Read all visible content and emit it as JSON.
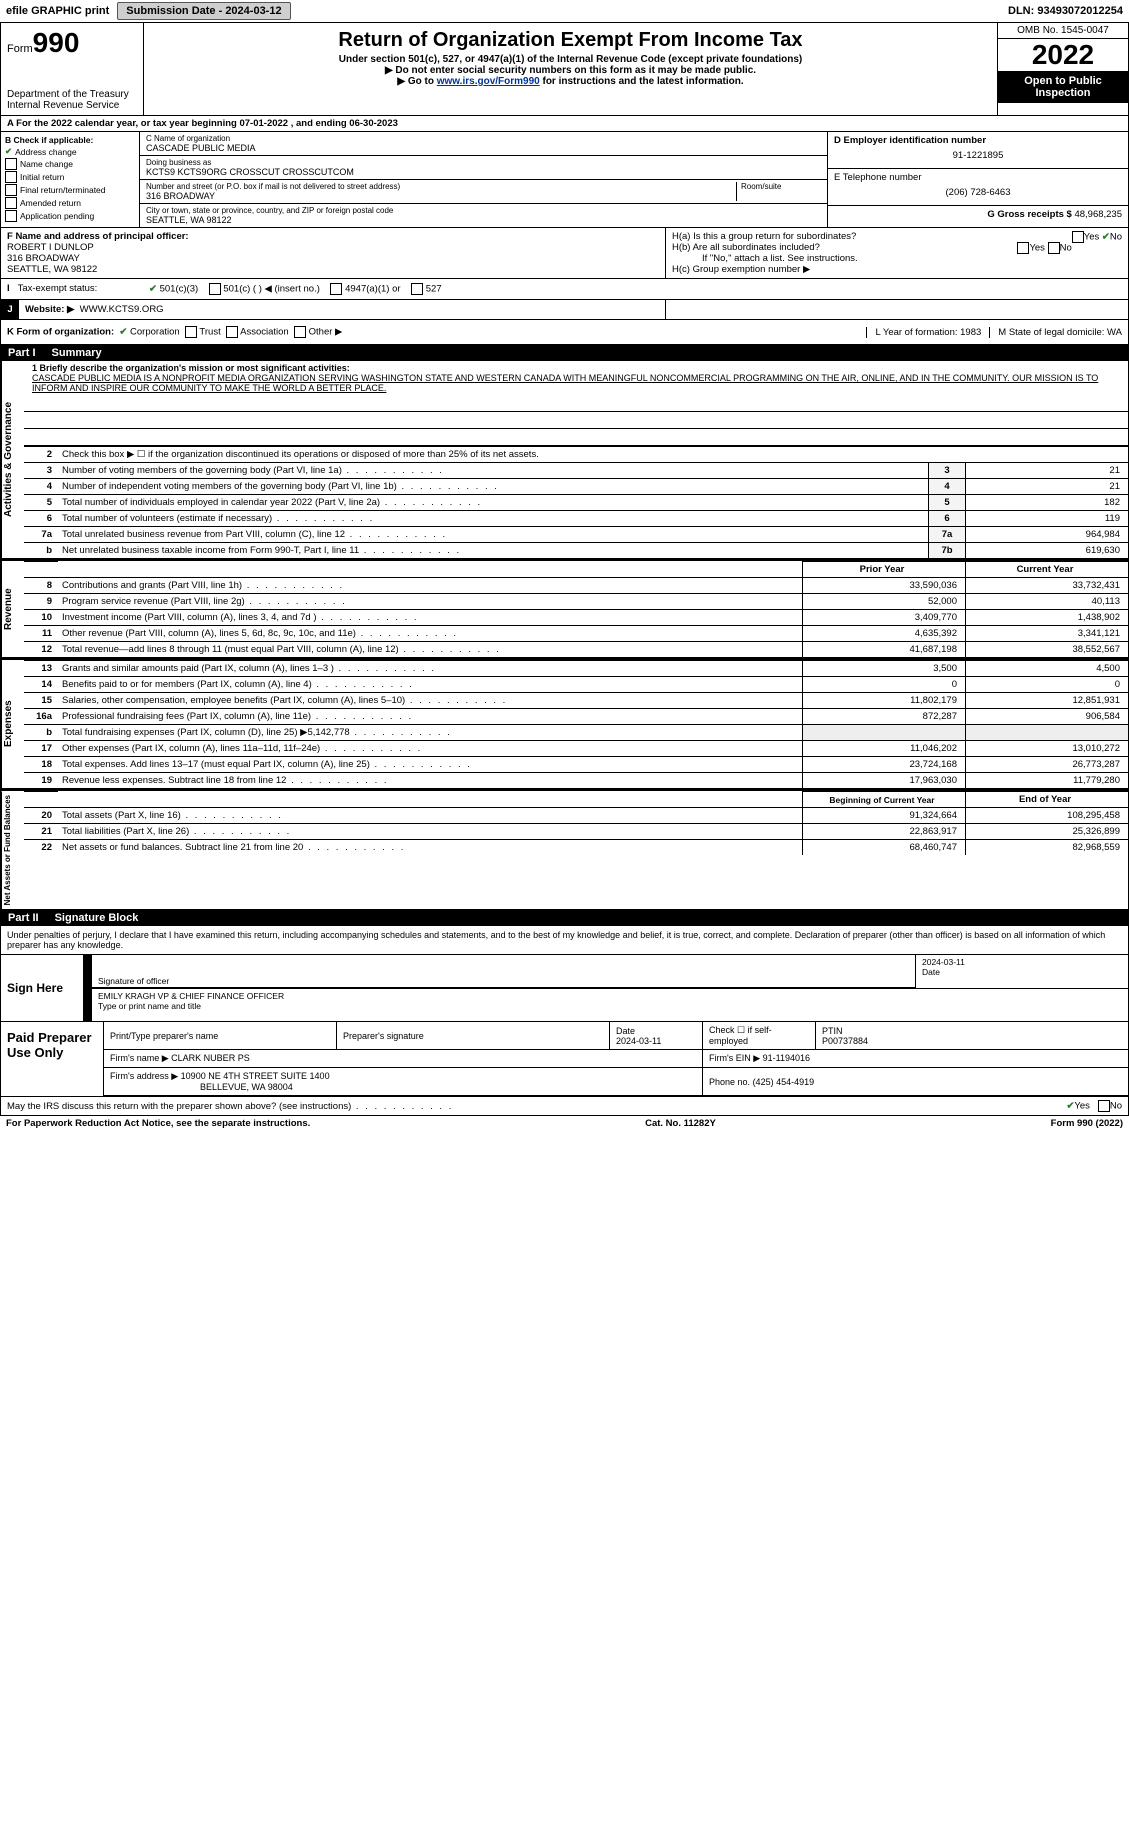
{
  "top": {
    "efile": "efile GRAPHIC print",
    "submission_label": "Submission Date - 2024-03-12",
    "dln": "DLN: 93493072012254"
  },
  "header": {
    "form_label": "Form",
    "form_num": "990",
    "dept": "Department of the Treasury",
    "irs": "Internal Revenue Service",
    "title": "Return of Organization Exempt From Income Tax",
    "subtitle": "Under section 501(c), 527, or 4947(a)(1) of the Internal Revenue Code (except private foundations)",
    "note1": "▶ Do not enter social security numbers on this form as it may be made public.",
    "note2_pre": "▶ Go to ",
    "note2_link": "www.irs.gov/Form990",
    "note2_post": " for instructions and the latest information.",
    "omb": "OMB No. 1545-0047",
    "year": "2022",
    "open": "Open to Public Inspection"
  },
  "periodA": "For the 2022 calendar year, or tax year beginning 07-01-2022     , and ending 06-30-2023",
  "boxB": {
    "label": "B Check if applicable:",
    "items": [
      {
        "checked": true,
        "text": "Address change"
      },
      {
        "checked": false,
        "text": "Name change"
      },
      {
        "checked": false,
        "text": "Initial return"
      },
      {
        "checked": false,
        "text": "Final return/terminated"
      },
      {
        "checked": false,
        "text": "Amended return"
      },
      {
        "checked": false,
        "text": "Application pending"
      }
    ]
  },
  "boxC": {
    "name_label": "C Name of organization",
    "name": "CASCADE PUBLIC MEDIA",
    "dba_label": "Doing business as",
    "dba": "KCTS9 KCTS9ORG CROSSCUT CROSSCUTCOM",
    "addr_label": "Number and street (or P.O. box if mail is not delivered to street address)",
    "room_label": "Room/suite",
    "addr": "316 BROADWAY",
    "city_label": "City or town, state or province, country, and ZIP or foreign postal code",
    "city": "SEATTLE, WA  98122"
  },
  "boxD": {
    "label": "D Employer identification number",
    "val": "91-1221895"
  },
  "boxE": {
    "label": "E Telephone number",
    "val": "(206) 728-6463"
  },
  "boxG": {
    "label": "G Gross receipts $",
    "val": "48,968,235"
  },
  "boxF": {
    "label": "F Name and address of principal officer:",
    "name": "ROBERT I DUNLOP",
    "addr1": "316 BROADWAY",
    "addr2": "SEATTLE, WA  98122"
  },
  "boxH": {
    "ha": "H(a)  Is this a group return for subordinates?",
    "hb": "H(b)  Are all subordinates included?",
    "hb_note": "If \"No,\" attach a list. See instructions.",
    "hc": "H(c)  Group exemption number ▶",
    "yes": "Yes",
    "no": "No"
  },
  "taxI": {
    "label": "Tax-exempt status:",
    "opt1": "501(c)(3)",
    "opt2": "501(c) (   ) ◀ (insert no.)",
    "opt3": "4947(a)(1) or",
    "opt4": "527"
  },
  "webJ": {
    "j": "J",
    "label": "Website: ▶",
    "val": "WWW.KCTS9.ORG"
  },
  "kRow": {
    "label": "K Form of organization:",
    "opts": [
      "Corporation",
      "Trust",
      "Association",
      "Other ▶"
    ],
    "checked_idx": 0,
    "l": "L Year of formation: 1983",
    "m": "M State of legal domicile: WA"
  },
  "part1": {
    "label": "Part I",
    "title": "Summary"
  },
  "mission": {
    "q": "1  Briefly describe the organization's mission or most significant activities:",
    "text": "CASCADE PUBLIC MEDIA IS A NONPROFIT MEDIA ORGANIZATION SERVING WASHINGTON STATE AND WESTERN CANADA WITH MEANINGFUL NONCOMMERCIAL PROGRAMMING ON THE AIR, ONLINE, AND IN THE COMMUNITY. OUR MISSION IS TO INFORM AND INSPIRE OUR COMMUNITY TO MAKE THE WORLD A BETTER PLACE."
  },
  "gov_lines": [
    {
      "n": "2",
      "text": "Check this box ▶ ☐  if the organization discontinued its operations or disposed of more than 25% of its net assets.",
      "num": "",
      "val": ""
    },
    {
      "n": "3",
      "text": "Number of voting members of the governing body (Part VI, line 1a)",
      "num": "3",
      "val": "21"
    },
    {
      "n": "4",
      "text": "Number of independent voting members of the governing body (Part VI, line 1b)",
      "num": "4",
      "val": "21"
    },
    {
      "n": "5",
      "text": "Total number of individuals employed in calendar year 2022 (Part V, line 2a)",
      "num": "5",
      "val": "182"
    },
    {
      "n": "6",
      "text": "Total number of volunteers (estimate if necessary)",
      "num": "6",
      "val": "119"
    },
    {
      "n": "7a",
      "text": "Total unrelated business revenue from Part VIII, column (C), line 12",
      "num": "7a",
      "val": "964,984"
    },
    {
      "n": "b",
      "text": "Net unrelated business taxable income from Form 990-T, Part I, line 11",
      "num": "7b",
      "val": "619,630"
    }
  ],
  "rev_head": {
    "prior": "Prior Year",
    "current": "Current Year"
  },
  "rev_lines": [
    {
      "n": "8",
      "text": "Contributions and grants (Part VIII, line 1h)",
      "p": "33,590,036",
      "c": "33,732,431"
    },
    {
      "n": "9",
      "text": "Program service revenue (Part VIII, line 2g)",
      "p": "52,000",
      "c": "40,113"
    },
    {
      "n": "10",
      "text": "Investment income (Part VIII, column (A), lines 3, 4, and 7d )",
      "p": "3,409,770",
      "c": "1,438,902"
    },
    {
      "n": "11",
      "text": "Other revenue (Part VIII, column (A), lines 5, 6d, 8c, 9c, 10c, and 11e)",
      "p": "4,635,392",
      "c": "3,341,121"
    },
    {
      "n": "12",
      "text": "Total revenue—add lines 8 through 11 (must equal Part VIII, column (A), line 12)",
      "p": "41,687,198",
      "c": "38,552,567"
    }
  ],
  "exp_lines": [
    {
      "n": "13",
      "text": "Grants and similar amounts paid (Part IX, column (A), lines 1–3 )",
      "p": "3,500",
      "c": "4,500"
    },
    {
      "n": "14",
      "text": "Benefits paid to or for members (Part IX, column (A), line 4)",
      "p": "0",
      "c": "0"
    },
    {
      "n": "15",
      "text": "Salaries, other compensation, employee benefits (Part IX, column (A), lines 5–10)",
      "p": "11,802,179",
      "c": "12,851,931"
    },
    {
      "n": "16a",
      "text": "Professional fundraising fees (Part IX, column (A), line 11e)",
      "p": "872,287",
      "c": "906,584"
    },
    {
      "n": "b",
      "text": "Total fundraising expenses (Part IX, column (D), line 25) ▶5,142,778",
      "p": "",
      "c": "",
      "shade": true
    },
    {
      "n": "17",
      "text": "Other expenses (Part IX, column (A), lines 11a–11d, 11f–24e)",
      "p": "11,046,202",
      "c": "13,010,272"
    },
    {
      "n": "18",
      "text": "Total expenses. Add lines 13–17 (must equal Part IX, column (A), line 25)",
      "p": "23,724,168",
      "c": "26,773,287"
    },
    {
      "n": "19",
      "text": "Revenue less expenses. Subtract line 18 from line 12",
      "p": "17,963,030",
      "c": "11,779,280"
    }
  ],
  "na_head": {
    "prior": "Beginning of Current Year",
    "current": "End of Year"
  },
  "na_lines": [
    {
      "n": "20",
      "text": "Total assets (Part X, line 16)",
      "p": "91,324,664",
      "c": "108,295,458"
    },
    {
      "n": "21",
      "text": "Total liabilities (Part X, line 26)",
      "p": "22,863,917",
      "c": "25,326,899"
    },
    {
      "n": "22",
      "text": "Net assets or fund balances. Subtract line 21 from line 20",
      "p": "68,460,747",
      "c": "82,968,559"
    }
  ],
  "part2": {
    "label": "Part II",
    "title": "Signature Block"
  },
  "penalties": "Under penalties of perjury, I declare that I have examined this return, including accompanying schedules and statements, and to the best of my knowledge and belief, it is true, correct, and complete. Declaration of preparer (other than officer) is based on all information of which preparer has any knowledge.",
  "sign": {
    "here": "Sign Here",
    "sig_label": "Signature of officer",
    "date_label": "Date",
    "date": "2024-03-11",
    "name": "EMILY KRAGH  VP & CHIEF FINANCE OFFICER",
    "name_label": "Type or print name and title"
  },
  "paid": {
    "label": "Paid Preparer Use Only",
    "h1": "Print/Type preparer's name",
    "h2": "Preparer's signature",
    "h3": "Date",
    "h3v": "2024-03-11",
    "h4": "Check ☐ if self-employed",
    "h5": "PTIN",
    "h5v": "P00737884",
    "firm_label": "Firm's name    ▶",
    "firm": "CLARK NUBER PS",
    "ein_label": "Firm's EIN ▶",
    "ein": "91-1194016",
    "addr_label": "Firm's address ▶",
    "addr1": "10900 NE 4TH STREET SUITE 1400",
    "addr2": "BELLEVUE, WA  98004",
    "phone_label": "Phone no.",
    "phone": "(425) 454-4919"
  },
  "discuss": {
    "q": "May the IRS discuss this return with the preparer shown above? (see instructions)",
    "yes": "Yes",
    "no": "No"
  },
  "footer": {
    "left": "For Paperwork Reduction Act Notice, see the separate instructions.",
    "mid": "Cat. No. 11282Y",
    "right": "Form 990 (2022)"
  },
  "vert": {
    "gov": "Activities & Governance",
    "rev": "Revenue",
    "exp": "Expenses",
    "na": "Net Assets or Fund Balances"
  },
  "colors": {
    "link": "#003399",
    "btn_bg": "#cfcfcf",
    "check_green": "#2a7a2a"
  }
}
